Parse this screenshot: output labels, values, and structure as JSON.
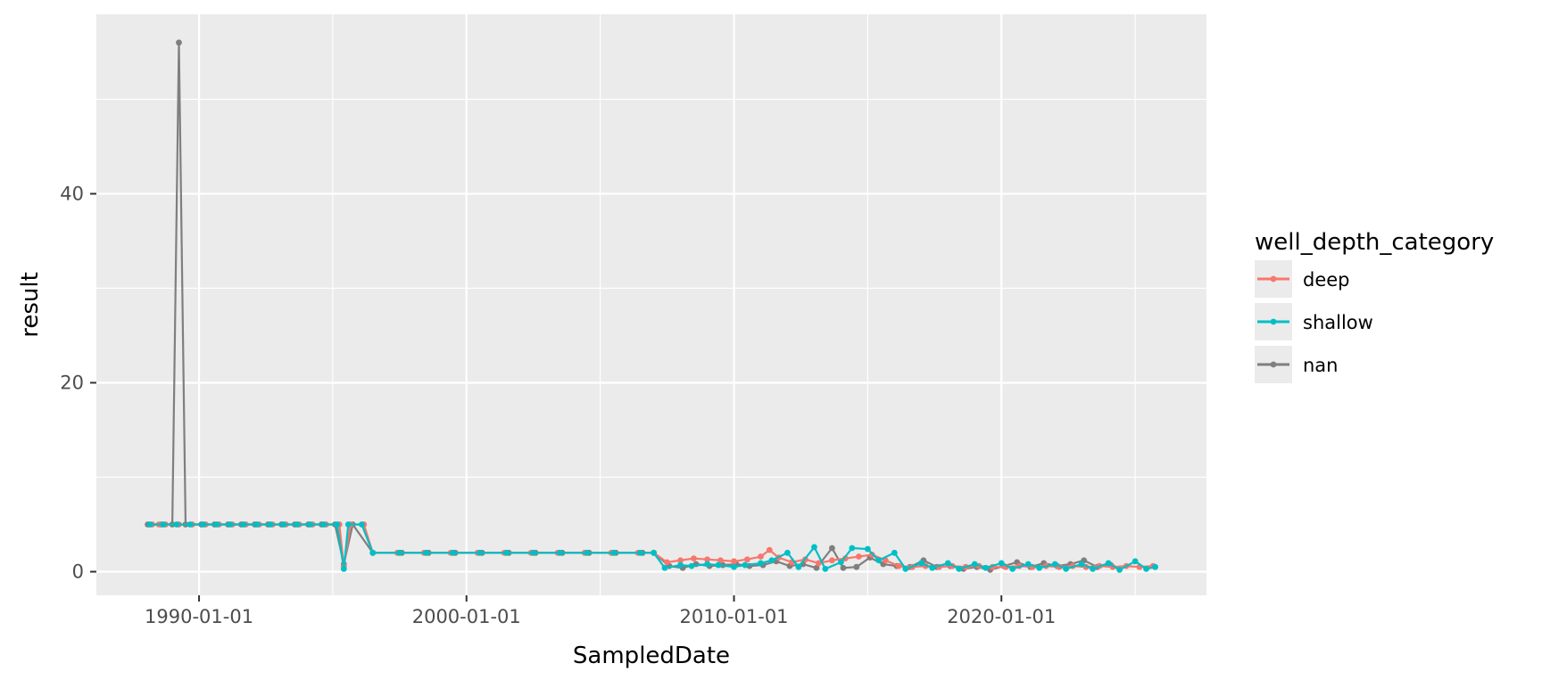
{
  "chart_data": {
    "type": "line",
    "title": "",
    "xlabel": "SampledDate",
    "ylabel": "result",
    "xlim": [
      "1986-03-01",
      "2027-09-01"
    ],
    "ylim": [
      -2.5,
      59.0
    ],
    "x_ticks": [
      "1990-01-01",
      "2000-01-01",
      "2010-01-01",
      "2020-01-01"
    ],
    "y_ticks": [
      0,
      20,
      40
    ],
    "grid": true,
    "legend": {
      "title": "well_depth_category",
      "position": "right",
      "entries": [
        "deep",
        "shallow",
        "nan"
      ]
    },
    "series": [
      {
        "name": "deep",
        "color": "#F8766D",
        "points": [
          [
            "1988-04-01",
            5
          ],
          [
            "1988-07-01",
            5
          ],
          [
            "1988-10-01",
            5
          ],
          [
            "1989-04-01",
            5
          ],
          [
            "1989-10-01",
            5
          ],
          [
            "1990-04-01",
            5
          ],
          [
            "1990-10-01",
            5
          ],
          [
            "1991-04-01",
            5
          ],
          [
            "1991-10-01",
            5
          ],
          [
            "1992-04-01",
            5
          ],
          [
            "1992-10-01",
            5
          ],
          [
            "1993-04-01",
            5
          ],
          [
            "1993-10-01",
            5
          ],
          [
            "1994-04-01",
            5
          ],
          [
            "1994-10-01",
            5
          ],
          [
            "1995-04-01",
            5
          ],
          [
            "1995-06-01",
            0.6
          ],
          [
            "1995-09-01",
            5
          ],
          [
            "1996-03-01",
            5
          ],
          [
            "1996-07-01",
            2
          ],
          [
            "1997-06-01",
            2
          ],
          [
            "1998-06-01",
            2
          ],
          [
            "1999-06-01",
            2
          ],
          [
            "2000-06-01",
            2
          ],
          [
            "2001-06-01",
            2
          ],
          [
            "2002-06-01",
            2
          ],
          [
            "2003-06-01",
            2
          ],
          [
            "2004-06-01",
            2
          ],
          [
            "2005-06-01",
            2
          ],
          [
            "2006-06-01",
            2
          ],
          [
            "2007-01-01",
            2
          ],
          [
            "2007-07-01",
            1.0
          ],
          [
            "2008-01-01",
            1.2
          ],
          [
            "2008-07-01",
            1.4
          ],
          [
            "2009-01-01",
            1.3
          ],
          [
            "2009-07-01",
            1.2
          ],
          [
            "2010-01-01",
            1.1
          ],
          [
            "2010-07-01",
            1.3
          ],
          [
            "2011-01-01",
            1.6
          ],
          [
            "2011-05-01",
            2.3
          ],
          [
            "2011-09-01",
            1.5
          ],
          [
            "2012-03-01",
            1.0
          ],
          [
            "2012-09-01",
            1.3
          ],
          [
            "2013-03-01",
            0.9
          ],
          [
            "2013-09-01",
            1.2
          ],
          [
            "2014-03-01",
            1.4
          ],
          [
            "2014-09-01",
            1.6
          ],
          [
            "2015-03-01",
            1.8
          ],
          [
            "2015-09-01",
            1.2
          ],
          [
            "2016-03-01",
            0.6
          ],
          [
            "2016-09-01",
            0.5
          ],
          [
            "2017-03-01",
            0.6
          ],
          [
            "2017-09-01",
            0.5
          ],
          [
            "2018-03-01",
            0.6
          ],
          [
            "2018-09-01",
            0.5
          ],
          [
            "2019-03-01",
            0.6
          ],
          [
            "2019-09-01",
            0.5
          ],
          [
            "2020-03-01",
            0.5
          ],
          [
            "2020-09-01",
            0.6
          ],
          [
            "2021-03-01",
            0.5
          ],
          [
            "2021-09-01",
            0.6
          ],
          [
            "2022-03-01",
            0.5
          ],
          [
            "2022-09-01",
            0.6
          ],
          [
            "2023-03-01",
            0.5
          ],
          [
            "2023-09-01",
            0.6
          ],
          [
            "2024-03-01",
            0.5
          ],
          [
            "2024-09-01",
            0.6
          ],
          [
            "2025-03-01",
            0.5
          ],
          [
            "2025-09-01",
            0.6
          ]
        ]
      },
      {
        "name": "shallow",
        "color": "#00BFC4",
        "points": [
          [
            "1988-03-01",
            5
          ],
          [
            "1988-09-01",
            5
          ],
          [
            "1989-03-01",
            5
          ],
          [
            "1989-09-01",
            5
          ],
          [
            "1990-03-01",
            5
          ],
          [
            "1990-09-01",
            5
          ],
          [
            "1991-03-01",
            5
          ],
          [
            "1991-09-01",
            5
          ],
          [
            "1992-03-01",
            5
          ],
          [
            "1992-09-01",
            5
          ],
          [
            "1993-03-01",
            5
          ],
          [
            "1993-09-01",
            5
          ],
          [
            "1994-03-01",
            5
          ],
          [
            "1994-09-01",
            5
          ],
          [
            "1995-03-01",
            5
          ],
          [
            "1995-06-01",
            0.3
          ],
          [
            "1995-08-01",
            5
          ],
          [
            "1996-02-01",
            5
          ],
          [
            "1996-07-01",
            2
          ],
          [
            "1997-07-01",
            2
          ],
          [
            "1998-07-01",
            2
          ],
          [
            "1999-07-01",
            2
          ],
          [
            "2000-07-01",
            2
          ],
          [
            "2001-07-01",
            2
          ],
          [
            "2002-07-01",
            2
          ],
          [
            "2003-07-01",
            2
          ],
          [
            "2004-07-01",
            2
          ],
          [
            "2005-07-01",
            2
          ],
          [
            "2006-07-01",
            2
          ],
          [
            "2007-01-01",
            2
          ],
          [
            "2007-06-01",
            0.4
          ],
          [
            "2008-01-01",
            0.7
          ],
          [
            "2008-06-01",
            0.6
          ],
          [
            "2009-01-01",
            0.8
          ],
          [
            "2009-06-01",
            0.7
          ],
          [
            "2010-01-01",
            0.5
          ],
          [
            "2010-06-01",
            0.7
          ],
          [
            "2011-01-01",
            0.9
          ],
          [
            "2011-06-01",
            1.2
          ],
          [
            "2012-01-01",
            2.0
          ],
          [
            "2012-06-01",
            0.5
          ],
          [
            "2013-01-01",
            2.6
          ],
          [
            "2013-06-01",
            0.3
          ],
          [
            "2014-01-01",
            1.0
          ],
          [
            "2014-06-01",
            2.5
          ],
          [
            "2015-01-01",
            2.4
          ],
          [
            "2015-06-01",
            1.2
          ],
          [
            "2016-01-01",
            2.0
          ],
          [
            "2016-06-01",
            0.3
          ],
          [
            "2017-01-01",
            0.9
          ],
          [
            "2017-06-01",
            0.4
          ],
          [
            "2018-01-01",
            0.9
          ],
          [
            "2018-06-01",
            0.3
          ],
          [
            "2019-01-01",
            0.8
          ],
          [
            "2019-06-01",
            0.4
          ],
          [
            "2020-01-01",
            0.9
          ],
          [
            "2020-06-01",
            0.3
          ],
          [
            "2021-01-01",
            0.8
          ],
          [
            "2021-06-01",
            0.4
          ],
          [
            "2022-01-01",
            0.8
          ],
          [
            "2022-06-01",
            0.3
          ],
          [
            "2023-01-01",
            0.8
          ],
          [
            "2023-06-01",
            0.3
          ],
          [
            "2024-01-01",
            0.9
          ],
          [
            "2024-06-01",
            0.2
          ],
          [
            "2025-01-01",
            1.1
          ],
          [
            "2025-06-01",
            0.3
          ],
          [
            "2025-10-01",
            0.5
          ]
        ]
      },
      {
        "name": "nan",
        "color": "#7F7F7F",
        "points": [
          [
            "1988-02-01",
            5
          ],
          [
            "1988-08-01",
            5
          ],
          [
            "1989-01-01",
            5
          ],
          [
            "1989-04-01",
            56
          ],
          [
            "1989-07-01",
            5
          ],
          [
            "1990-02-01",
            5
          ],
          [
            "1990-08-01",
            5
          ],
          [
            "1991-02-01",
            5
          ],
          [
            "1991-08-01",
            5
          ],
          [
            "1992-02-01",
            5
          ],
          [
            "1992-08-01",
            5
          ],
          [
            "1993-02-01",
            5
          ],
          [
            "1993-08-01",
            5
          ],
          [
            "1994-02-01",
            5
          ],
          [
            "1994-08-01",
            5
          ],
          [
            "1995-02-01",
            5
          ],
          [
            "1995-06-01",
            0.8
          ],
          [
            "1995-10-01",
            5
          ],
          [
            "1996-07-01",
            2
          ],
          [
            "1997-08-01",
            2
          ],
          [
            "1998-08-01",
            2
          ],
          [
            "1999-08-01",
            2
          ],
          [
            "2000-08-01",
            2
          ],
          [
            "2001-08-01",
            2
          ],
          [
            "2002-08-01",
            2
          ],
          [
            "2003-08-01",
            2
          ],
          [
            "2004-08-01",
            2
          ],
          [
            "2005-08-01",
            2
          ],
          [
            "2006-08-01",
            2
          ],
          [
            "2007-01-01",
            2
          ],
          [
            "2007-08-01",
            0.6
          ],
          [
            "2008-02-01",
            0.4
          ],
          [
            "2008-08-01",
            0.8
          ],
          [
            "2009-02-01",
            0.6
          ],
          [
            "2009-08-01",
            0.7
          ],
          [
            "2010-02-01",
            0.8
          ],
          [
            "2010-08-01",
            0.6
          ],
          [
            "2011-02-01",
            0.7
          ],
          [
            "2011-08-01",
            1.1
          ],
          [
            "2012-02-01",
            0.6
          ],
          [
            "2012-08-01",
            0.8
          ],
          [
            "2013-02-01",
            0.4
          ],
          [
            "2013-09-01",
            2.5
          ],
          [
            "2014-02-01",
            0.4
          ],
          [
            "2014-08-01",
            0.5
          ],
          [
            "2015-02-01",
            1.5
          ],
          [
            "2015-08-01",
            0.8
          ],
          [
            "2016-02-01",
            0.6
          ],
          [
            "2016-08-01",
            0.5
          ],
          [
            "2017-02-01",
            1.2
          ],
          [
            "2017-08-01",
            0.5
          ],
          [
            "2018-02-01",
            0.6
          ],
          [
            "2018-08-01",
            0.3
          ],
          [
            "2019-02-01",
            0.5
          ],
          [
            "2019-08-01",
            0.2
          ],
          [
            "2020-02-01",
            0.6
          ],
          [
            "2020-08-01",
            1.0
          ],
          [
            "2021-02-01",
            0.5
          ],
          [
            "2021-08-01",
            0.9
          ],
          [
            "2022-02-01",
            0.6
          ],
          [
            "2022-08-01",
            0.8
          ],
          [
            "2023-02-01",
            1.2
          ],
          [
            "2023-08-01",
            0.5
          ],
          [
            "2024-02-01",
            0.7
          ]
        ]
      }
    ]
  }
}
